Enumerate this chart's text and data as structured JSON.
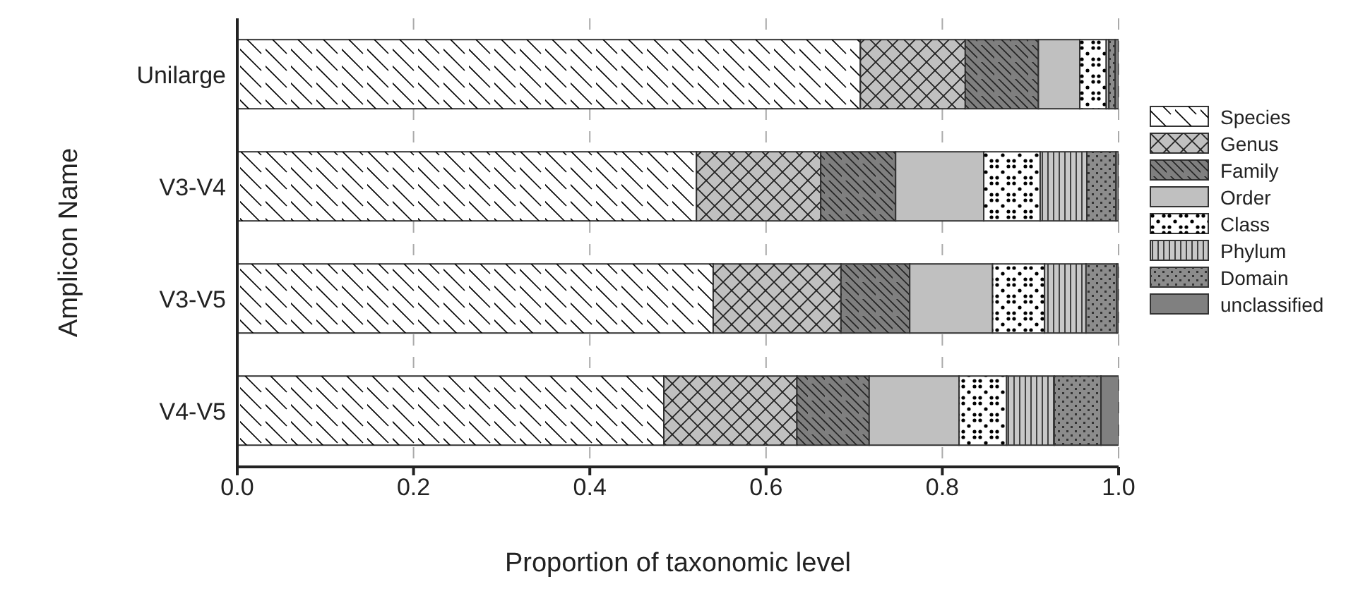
{
  "chart_data": {
    "type": "bar",
    "orientation": "horizontal",
    "stacked": true,
    "xlabel": "Proportion of taxonomic level",
    "ylabel": "Amplicon Name",
    "categories": [
      "Unilarge",
      "V3-V4",
      "V3-V5",
      "V4-V5"
    ],
    "series": [
      {
        "name": "Species",
        "color": "#ffffff",
        "values": [
          0.707,
          0.521,
          0.54,
          0.484
        ]
      },
      {
        "name": "Genus",
        "color": "#c0c0c0",
        "values": [
          0.119,
          0.141,
          0.145,
          0.151
        ]
      },
      {
        "name": "Family",
        "color": "#7f7f7f",
        "values": [
          0.083,
          0.085,
          0.078,
          0.082
        ]
      },
      {
        "name": "Order",
        "color": "#c0c0c0",
        "values": [
          0.047,
          0.1,
          0.094,
          0.102
        ]
      },
      {
        "name": "Class",
        "color": "#ffffff",
        "values": [
          0.03,
          0.064,
          0.059,
          0.054
        ]
      },
      {
        "name": "Phylum",
        "color": "#c8c8c8",
        "values": [
          0.003,
          0.053,
          0.047,
          0.054
        ]
      },
      {
        "name": "Domain",
        "color": "#8c8c8c",
        "values": [
          0.007,
          0.033,
          0.035,
          0.053
        ]
      },
      {
        "name": "unclassified",
        "color": "#808080",
        "values": [
          0.004,
          0.003,
          0.002,
          0.02
        ]
      }
    ],
    "xlim": [
      0,
      1
    ],
    "xticks": [
      {
        "value": 0,
        "label": "0.0"
      },
      0.2,
      0.4,
      0.6,
      0.8,
      {
        "value": 1,
        "label": "1.0"
      }
    ],
    "grid": "x",
    "legend": "right"
  }
}
